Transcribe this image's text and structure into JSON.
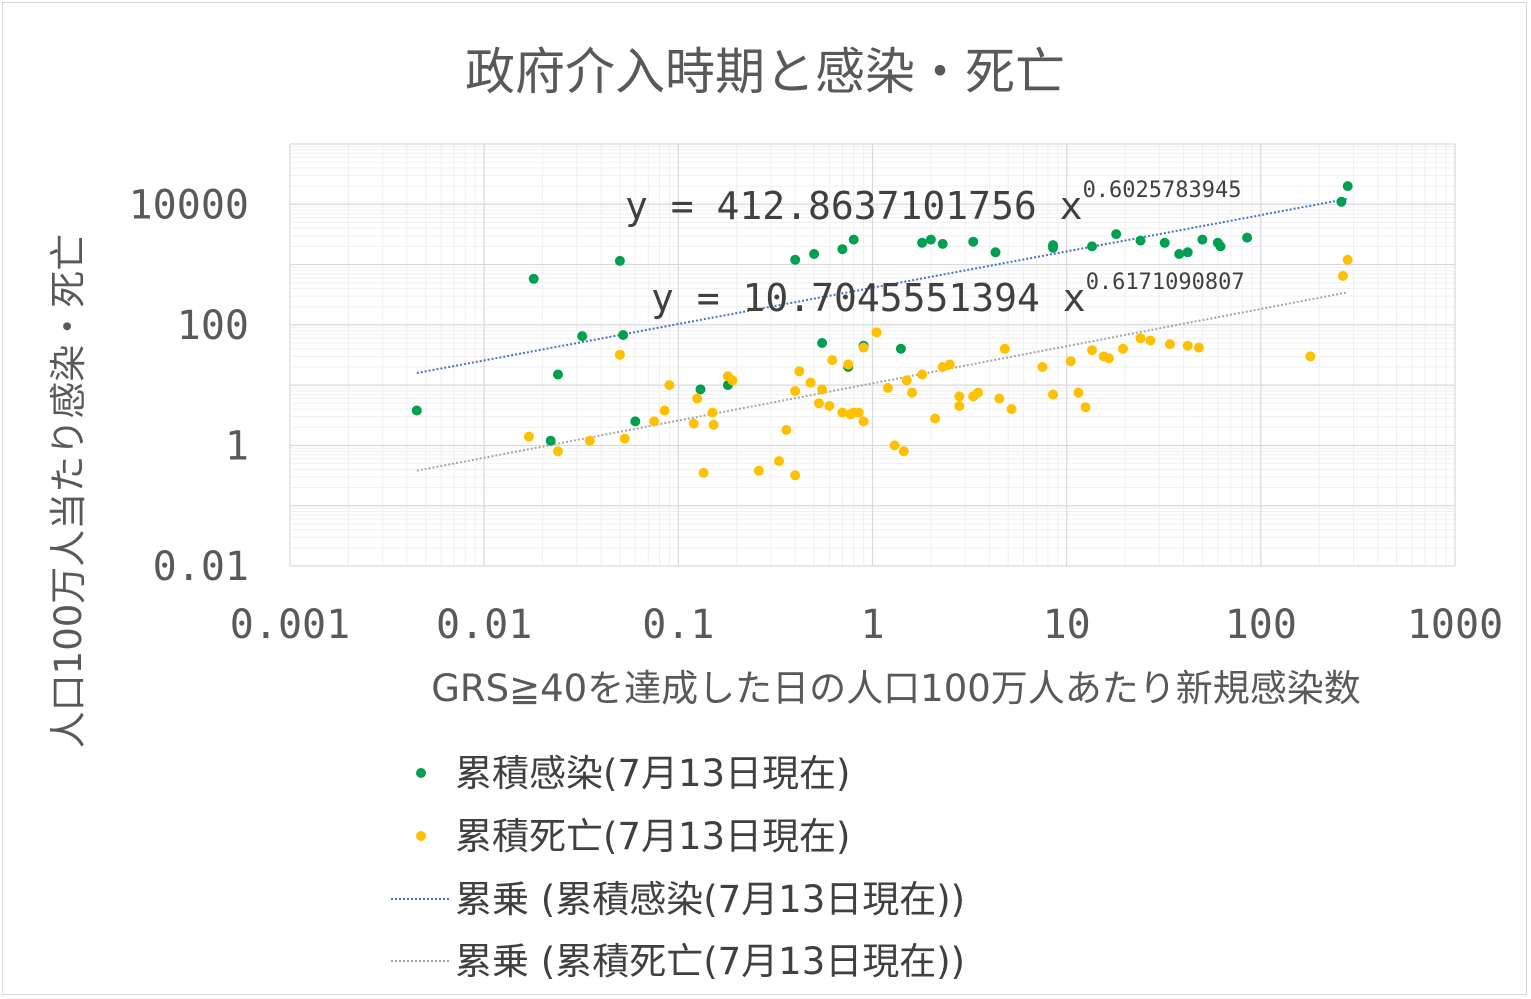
{
  "chart_data": {
    "type": "scatter",
    "title": "政府介入時期と感染・死亡",
    "xlabel": "GRS≧40を達成した日の人口100万人あたり新規感染数",
    "ylabel": "人口100万人当たり感染・死亡",
    "x_scale": "log",
    "y_scale": "log",
    "xlim": [
      0.001,
      1000
    ],
    "ylim": [
      0.01,
      100000
    ],
    "x_ticks": [
      "0.001",
      "0.01",
      "0.1",
      "1",
      "10",
      "100",
      "1000"
    ],
    "y_ticks": [
      "0.01",
      "1",
      "100",
      "10000"
    ],
    "grid": "major and minor, both axes",
    "legend_position": "bottom",
    "series": [
      {
        "name": "累積感染(7月13日現在)",
        "color": "#00a050",
        "points": [
          [
            0.0045,
            3.8
          ],
          [
            0.018,
            580
          ],
          [
            0.022,
            1.2
          ],
          [
            0.024,
            15
          ],
          [
            0.032,
            65
          ],
          [
            0.05,
            1150
          ],
          [
            0.052,
            68
          ],
          [
            0.06,
            2.5
          ],
          [
            0.13,
            8.5
          ],
          [
            0.18,
            10
          ],
          [
            0.4,
            1200
          ],
          [
            0.5,
            1500
          ],
          [
            0.55,
            50
          ],
          [
            0.7,
            1800
          ],
          [
            0.75,
            20
          ],
          [
            0.8,
            2600
          ],
          [
            0.9,
            45
          ],
          [
            1.4,
            40
          ],
          [
            1.8,
            2300
          ],
          [
            2.0,
            2600
          ],
          [
            2.3,
            2200
          ],
          [
            3.3,
            2400
          ],
          [
            4.3,
            1600
          ],
          [
            8.5,
            2100
          ],
          [
            8.5,
            1900
          ],
          [
            13.5,
            2000
          ],
          [
            18,
            3200
          ],
          [
            24,
            2500
          ],
          [
            32,
            2300
          ],
          [
            38,
            1500
          ],
          [
            42,
            1600
          ],
          [
            50,
            2600
          ],
          [
            60,
            2300
          ],
          [
            62,
            2000
          ],
          [
            85,
            2800
          ],
          [
            260,
            11000
          ],
          [
            280,
            20000
          ]
        ]
      },
      {
        "name": "累積死亡(7月13日現在)",
        "color": "#ffc000",
        "points": [
          [
            0.017,
            1.4
          ],
          [
            0.024,
            0.8
          ],
          [
            0.035,
            1.2
          ],
          [
            0.05,
            32
          ],
          [
            0.053,
            1.3
          ],
          [
            0.075,
            2.5
          ],
          [
            0.085,
            3.8
          ],
          [
            0.09,
            10
          ],
          [
            0.12,
            2.3
          ],
          [
            0.125,
            6
          ],
          [
            0.135,
            0.35
          ],
          [
            0.15,
            3.5
          ],
          [
            0.152,
            2.2
          ],
          [
            0.18,
            14
          ],
          [
            0.19,
            12
          ],
          [
            0.26,
            0.38
          ],
          [
            0.33,
            0.55
          ],
          [
            0.36,
            1.8
          ],
          [
            0.4,
            0.32
          ],
          [
            0.4,
            8
          ],
          [
            0.42,
            17
          ],
          [
            0.48,
            11
          ],
          [
            0.53,
            5
          ],
          [
            0.55,
            8.5
          ],
          [
            0.6,
            4.5
          ],
          [
            0.62,
            26
          ],
          [
            0.7,
            3.5
          ],
          [
            0.75,
            22
          ],
          [
            0.77,
            3.3
          ],
          [
            0.8,
            3.5
          ],
          [
            0.85,
            3.5
          ],
          [
            0.9,
            2.5
          ],
          [
            0.9,
            42
          ],
          [
            1.05,
            75
          ],
          [
            1.2,
            9
          ],
          [
            1.3,
            1.0
          ],
          [
            1.45,
            0.8
          ],
          [
            1.5,
            12
          ],
          [
            1.6,
            7.5
          ],
          [
            1.8,
            15
          ],
          [
            2.1,
            2.8
          ],
          [
            2.3,
            20
          ],
          [
            2.5,
            22
          ],
          [
            2.8,
            4.5
          ],
          [
            2.8,
            6.5
          ],
          [
            3.3,
            6.5
          ],
          [
            3.5,
            7.5
          ],
          [
            4.5,
            6
          ],
          [
            4.8,
            40
          ],
          [
            5.2,
            4
          ],
          [
            7.5,
            20
          ],
          [
            8.5,
            7
          ],
          [
            10.5,
            25
          ],
          [
            11.5,
            7.5
          ],
          [
            12.5,
            4.3
          ],
          [
            13.5,
            38
          ],
          [
            15.5,
            30
          ],
          [
            16.5,
            28
          ],
          [
            19.5,
            40
          ],
          [
            24,
            60
          ],
          [
            27,
            55
          ],
          [
            34,
            48
          ],
          [
            42,
            45
          ],
          [
            48,
            42
          ],
          [
            180,
            30
          ],
          [
            265,
            650
          ],
          [
            280,
            1200
          ]
        ]
      }
    ],
    "trendlines": [
      {
        "name": "累乗 (累積感染(7月13日現在))",
        "kind": "power",
        "color": "#4472c4",
        "coefficient": 412.8637101756,
        "exponent": 0.6025783945,
        "equation": "y = 412.8637101756 x",
        "equation_exponent": "0.6025783945",
        "x_range": [
          0.0045,
          280
        ]
      },
      {
        "name": "累乗 (累積死亡(7月13日現在))",
        "kind": "power",
        "color": "#a5a5a5",
        "coefficient": 10.7045551394,
        "exponent": 0.6171090807,
        "equation": "y = 10.7045551394 x",
        "equation_exponent": "0.6171090807",
        "x_range": [
          0.0045,
          280
        ]
      }
    ]
  }
}
